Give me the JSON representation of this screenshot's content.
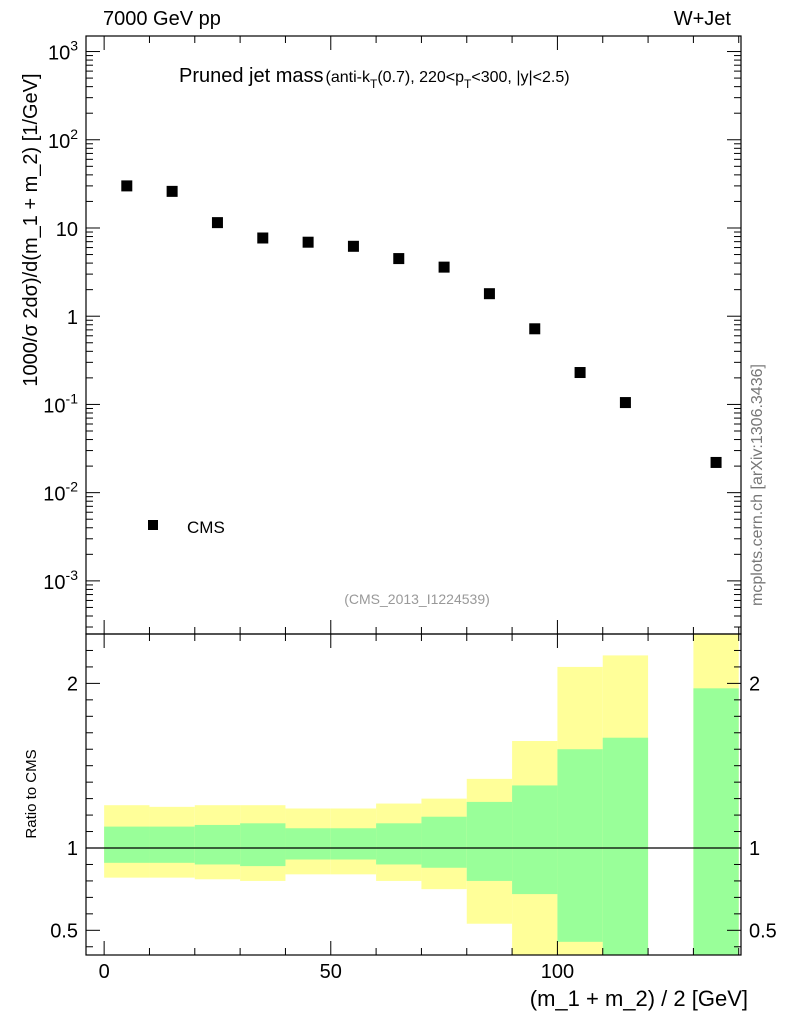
{
  "header": {
    "left": "7000 GeV pp",
    "right": "W+Jet"
  },
  "watermark": "mcplots.cern.ch [arXiv:1306.3436]",
  "chart_data": [
    {
      "type": "scatter",
      "panel": "main",
      "title": "Pruned jet mass",
      "subtitle_parts": [
        "(anti-k",
        "T",
        "(0.7), 220<p",
        "T",
        "<300, |y|<2.5)"
      ],
      "ylabel": "1000/σ 2dσ)/d(m_1 + m_2) [1/GeV]",
      "yscale": "log",
      "ylim": [
        0.00025,
        1500
      ],
      "xlim": [
        -4,
        140.5
      ],
      "y_tick_labels": [
        {
          "value": 0.001,
          "base": "10",
          "exp": "-3"
        },
        {
          "value": 0.01,
          "base": "10",
          "exp": "-2"
        },
        {
          "value": 0.1,
          "base": "10",
          "exp": "-1"
        },
        {
          "value": 1,
          "base": "1",
          "exp": ""
        },
        {
          "value": 10,
          "base": "10",
          "exp": ""
        },
        {
          "value": 100,
          "base": "10",
          "exp": "2"
        },
        {
          "value": 1000,
          "base": "10",
          "exp": "3"
        }
      ],
      "series": [
        {
          "name": "CMS",
          "marker": "square",
          "color": "#000000",
          "x": [
            5,
            15,
            25,
            35,
            45,
            55,
            65,
            75,
            85,
            95,
            105,
            115,
            135
          ],
          "y": [
            30,
            26,
            11.5,
            7.7,
            6.9,
            6.2,
            4.5,
            3.6,
            1.8,
            0.72,
            0.23,
            0.105,
            0.022
          ]
        }
      ],
      "legend": {
        "position": "bottom-left",
        "entries": [
          "CMS"
        ]
      },
      "annotation": "(CMS_2013_I1224539)",
      "annotation_color": "#999999"
    },
    {
      "type": "area",
      "panel": "ratio",
      "ylabel": "Ratio to CMS",
      "xlabel": "(m_1 + m_2) / 2 [GeV]",
      "ylim": [
        0.35,
        2.3
      ],
      "xlim": [
        -4,
        140.5
      ],
      "y_ticks": [
        0.5,
        1,
        2
      ],
      "y_tick_labels": [
        "0.5",
        "1",
        "2"
      ],
      "x_ticks": [
        0,
        50,
        100
      ],
      "x_tick_labels": [
        "0",
        "50",
        "100"
      ],
      "reference_line": 1,
      "bin_edges": [
        0,
        10,
        20,
        30,
        40,
        50,
        60,
        70,
        80,
        90,
        100,
        110,
        120,
        130,
        140
      ],
      "bands": [
        {
          "name": "total uncertainty",
          "color": "#ffff99",
          "lower": [
            0.82,
            0.82,
            0.81,
            0.8,
            0.84,
            0.84,
            0.8,
            0.75,
            0.54,
            0.32,
            0.32,
            0.32,
            null,
            0.32
          ],
          "upper": [
            1.26,
            1.25,
            1.26,
            1.26,
            1.24,
            1.24,
            1.27,
            1.3,
            1.42,
            1.65,
            2.1,
            2.17,
            null,
            2.4
          ]
        },
        {
          "name": "statistical uncertainty",
          "color": "#99ff99",
          "lower": [
            0.91,
            0.91,
            0.9,
            0.89,
            0.93,
            0.93,
            0.9,
            0.88,
            0.8,
            0.72,
            0.43,
            0.32,
            null,
            0.32
          ],
          "upper": [
            1.13,
            1.13,
            1.14,
            1.15,
            1.12,
            1.12,
            1.15,
            1.19,
            1.28,
            1.38,
            1.6,
            1.67,
            null,
            1.97
          ]
        }
      ]
    }
  ]
}
